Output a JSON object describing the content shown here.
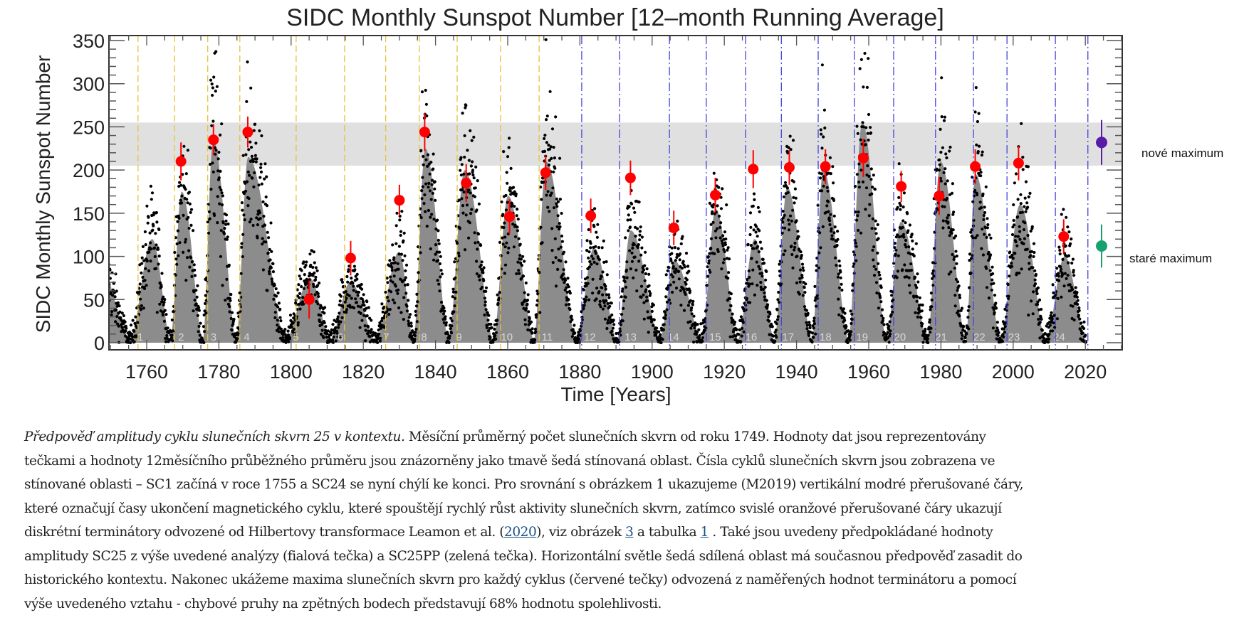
{
  "chart_data": {
    "type": "scatter",
    "title": "SIDC Monthly Sunspot Number [12–month Running Average]",
    "xlabel": "Time [Years]",
    "ylabel": "SIDC Monthly Sunspot Number",
    "xlim": [
      1749,
      2030
    ],
    "ylim": [
      0,
      350
    ],
    "x_ticks": [
      1760,
      1780,
      1800,
      1820,
      1840,
      1860,
      1880,
      1900,
      1920,
      1940,
      1960,
      1980,
      2000,
      2020
    ],
    "y_ticks": [
      0,
      50,
      100,
      150,
      200,
      250,
      300,
      350
    ],
    "grid": false,
    "forecast_band": {
      "from": 205,
      "to": 255,
      "color": "#e0e0e0"
    },
    "colors": {
      "running_average": "#8c8c8c",
      "monthly_dots": "#000000",
      "cycle_maxima": "#ff0000",
      "new_forecast": "#5a1aa8",
      "old_forecast": "#17a070",
      "orange_lines": "#e8c23a",
      "blue_lines": "#4444dd",
      "cycle_numbers": "#d8d8d8"
    },
    "running_average_start_value": 80,
    "cycles": [
      {
        "number": "1",
        "start": 1755.2,
        "peak_year": 1761.5,
        "peak": 120
      },
      {
        "number": "2",
        "start": 1766.5,
        "peak_year": 1769.7,
        "peak": 175
      },
      {
        "number": "3",
        "start": 1775.5,
        "peak_year": 1778.4,
        "peak": 235
      },
      {
        "number": "4",
        "start": 1784.7,
        "peak_year": 1788.1,
        "peak": 215
      },
      {
        "number": "5",
        "start": 1798.3,
        "peak_year": 1805.2,
        "peak": 75
      },
      {
        "number": "6",
        "start": 1810.6,
        "peak_year": 1816.4,
        "peak": 70
      },
      {
        "number": "7",
        "start": 1823.3,
        "peak_year": 1829.9,
        "peak": 105
      },
      {
        "number": "8",
        "start": 1833.8,
        "peak_year": 1837.2,
        "peak": 225
      },
      {
        "number": "9",
        "start": 1843.5,
        "peak_year": 1848.1,
        "peak": 200
      },
      {
        "number": "10",
        "start": 1855.9,
        "peak_year": 1860.1,
        "peak": 170
      },
      {
        "number": "11",
        "start": 1867.2,
        "peak_year": 1870.6,
        "peak": 210
      },
      {
        "number": "12",
        "start": 1878.9,
        "peak_year": 1883.9,
        "peak": 110
      },
      {
        "number": "13",
        "start": 1890.2,
        "peak_year": 1894.1,
        "peak": 130
      },
      {
        "number": "14",
        "start": 1902.0,
        "peak_year": 1906.2,
        "peak": 95
      },
      {
        "number": "15",
        "start": 1913.6,
        "peak_year": 1917.6,
        "peak": 155
      },
      {
        "number": "16",
        "start": 1923.6,
        "peak_year": 1928.4,
        "peak": 120
      },
      {
        "number": "17",
        "start": 1933.8,
        "peak_year": 1937.4,
        "peak": 180
      },
      {
        "number": "18",
        "start": 1944.2,
        "peak_year": 1947.4,
        "peak": 200
      },
      {
        "number": "19",
        "start": 1954.3,
        "peak_year": 1958.2,
        "peak": 255
      },
      {
        "number": "20",
        "start": 1964.8,
        "peak_year": 1968.9,
        "peak": 140
      },
      {
        "number": "21",
        "start": 1976.2,
        "peak_year": 1979.9,
        "peak": 210
      },
      {
        "number": "22",
        "start": 1986.8,
        "peak_year": 1989.6,
        "peak": 195
      },
      {
        "number": "23",
        "start": 1996.4,
        "peak_year": 2001.9,
        "peak": 160
      },
      {
        "number": "24",
        "start": 2008.9,
        "peak_year": 2014.3,
        "peak": 100
      }
    ],
    "running_average_end": 2019.9,
    "orange_terminators": [
      1757.6,
      1767.7,
      1776.9,
      1785.8,
      1801.4,
      1814.8,
      1826.2,
      1835.5,
      1846.0,
      1858.0,
      1868.7
    ],
    "blue_terminators": [
      1880.5,
      1891.0,
      1904.8,
      1915.0,
      1925.9,
      1935.8,
      1946.0,
      1956.0,
      1966.9,
      1978.5,
      1989.0,
      1998.3,
      2011.7,
      2020.7
    ],
    "cycle_maxima": [
      {
        "year": 1769.5,
        "value": 210,
        "err": 22
      },
      {
        "year": 1778.5,
        "value": 235,
        "err": 18
      },
      {
        "year": 1788,
        "value": 244,
        "err": 18
      },
      {
        "year": 1805,
        "value": 50,
        "err": 22
      },
      {
        "year": 1816.5,
        "value": 98,
        "err": 20
      },
      {
        "year": 1830,
        "value": 165,
        "err": 18
      },
      {
        "year": 1837,
        "value": 244,
        "err": 22
      },
      {
        "year": 1848.5,
        "value": 185,
        "err": 22
      },
      {
        "year": 1860.5,
        "value": 146,
        "err": 20
      },
      {
        "year": 1870.5,
        "value": 197,
        "err": 20
      },
      {
        "year": 1883,
        "value": 147,
        "err": 20
      },
      {
        "year": 1894,
        "value": 191,
        "err": 20
      },
      {
        "year": 1906,
        "value": 133,
        "err": 20
      },
      {
        "year": 1917.5,
        "value": 171,
        "err": 20
      },
      {
        "year": 1928,
        "value": 201,
        "err": 22
      },
      {
        "year": 1938,
        "value": 203,
        "err": 20
      },
      {
        "year": 1948,
        "value": 204,
        "err": 20
      },
      {
        "year": 1958.5,
        "value": 214,
        "err": 22
      },
      {
        "year": 1969,
        "value": 181,
        "err": 18
      },
      {
        "year": 1979.5,
        "value": 170,
        "err": 22
      },
      {
        "year": 1989.5,
        "value": 204,
        "err": 20
      },
      {
        "year": 2001.5,
        "value": 208,
        "err": 20
      },
      {
        "year": 2014,
        "value": 123,
        "err": 20
      }
    ],
    "forecast_new": {
      "year": 2024.5,
      "value": 232,
      "err": 26,
      "label": "nové maximum"
    },
    "forecast_old": {
      "year": 2024.5,
      "value": 112,
      "err": 25,
      "label": "staré maximum"
    }
  },
  "caption": {
    "lines": [
      [
        {
          "t": "Předpověď amplitudy cyklu slunečních skvrn 25 v kontextu.",
          "style": "em"
        },
        {
          "t": " Měsíční průměrný počet slunečních skvrn od roku 1749. Hodnoty dat jsou reprezentovány"
        }
      ],
      [
        {
          "t": "tečkami a hodnoty 12měsíčního průběžného průměru jsou znázorněny jako tmavě šedá stínovaná oblast. Čísla cyklů slunečních skvrn jsou zobrazena ve"
        }
      ],
      [
        {
          "t": "stínované oblasti – SC1 začíná v roce 1755 a SC24 se nyní chýlí ke konci. Pro srovnání s obrázkem 1 ukazujeme (M2019) vertikální modré přerušované čáry,"
        }
      ],
      [
        {
          "t": "které označují časy ukončení magnetického cyklu, které spouštějí rychlý růst aktivity slunečních skvrn, zatímco svislé oranžové přerušované čáry ukazují"
        }
      ],
      [
        {
          "t": "diskrétní terminátory odvozené od Hilbertovy transformace Leamon et al. ("
        },
        {
          "t": "2020",
          "style": "link"
        },
        {
          "t": "), viz obrázek "
        },
        {
          "t": "3",
          "style": "link"
        },
        {
          "t": " a tabulka "
        },
        {
          "t": "1",
          "style": "link"
        },
        {
          "t": " . Také jsou uvedeny předpokládané hodnoty"
        }
      ],
      [
        {
          "t": "amplitudy SC25 z výše uvedené analýzy (fialová tečka) a SC25PP (zelená tečka). Horizontální světle šedá sdílená oblast má současnou předpověď zasadit do"
        }
      ],
      [
        {
          "t": "historického kontextu. Nakonec ukážeme maxima slunečních skvrn pro každý cyklus (červené tečky) odvozená z naměřených hodnot terminátoru a pomocí"
        }
      ],
      [
        {
          "t": "výše uvedeného vztahu - chybové pruhy na zpětných bodech představují 68% hodnotu spolehlivosti."
        }
      ]
    ]
  }
}
